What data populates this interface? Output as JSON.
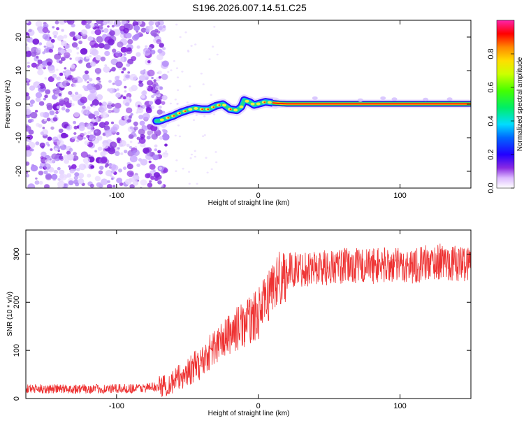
{
  "title": "S196.2026.007.14.51.C25",
  "chart_data": [
    {
      "type": "heatmap",
      "title": "S196.2026.007.14.51.C25",
      "xlabel": "Height of straight line (km)",
      "ylabel": "Frequency (Hz)",
      "xlim": [
        -164,
        150
      ],
      "ylim": [
        -25,
        25
      ],
      "x_ticks": [
        -100,
        0,
        100
      ],
      "y_ticks": [
        -20,
        -10,
        0,
        10,
        20
      ],
      "noise_region_x": [
        -164,
        -68
      ],
      "signal_track": {
        "x": [
          -80,
          -70,
          -65,
          -60,
          -55,
          -50,
          -45,
          -40,
          -35,
          -30,
          -25,
          -20,
          -15,
          -12,
          -10,
          -6,
          -3,
          0,
          5,
          10,
          15,
          20,
          40,
          60,
          80,
          100,
          120,
          150
        ],
        "frequency": [
          -5,
          -5,
          -4.2,
          -3.5,
          -2.5,
          -1.8,
          -1.2,
          -1.5,
          -1.5,
          -0.5,
          0,
          -1.5,
          -1.8,
          -0.8,
          1.2,
          0.6,
          -0.2,
          0.1,
          0.7,
          0.4,
          0.2,
          0.1,
          0.1,
          0.1,
          0.1,
          0.1,
          0.1,
          0.1
        ]
      },
      "colorbar": {
        "label": "Normalized spectral amplitude",
        "range": [
          0.0,
          1.0
        ],
        "ticks": [
          0.0,
          0.2,
          0.4,
          0.6,
          0.8
        ]
      }
    },
    {
      "type": "line",
      "xlabel": "Height of straight line (km)",
      "ylabel": "SNR (10 * v/v)",
      "xlim": [
        -164,
        150
      ],
      "ylim": [
        0,
        350
      ],
      "x_ticks": [
        -100,
        0,
        100
      ],
      "y_ticks": [
        0,
        100,
        200,
        300
      ],
      "color": "#ee3333",
      "x": [
        -164,
        -140,
        -120,
        -100,
        -80,
        -70,
        -65,
        -60,
        -55,
        -50,
        -45,
        -40,
        -35,
        -30,
        -25,
        -20,
        -15,
        -10,
        -5,
        0,
        5,
        10,
        15,
        20,
        25,
        30,
        40,
        50,
        60,
        70,
        80,
        90,
        100,
        110,
        120,
        130,
        140,
        150
      ],
      "values": [
        20,
        20,
        20,
        20,
        22,
        25,
        28,
        35,
        45,
        55,
        65,
        75,
        95,
        110,
        120,
        135,
        145,
        155,
        165,
        175,
        200,
        235,
        250,
        262,
        268,
        270,
        272,
        272,
        275,
        275,
        276,
        278,
        275,
        276,
        282,
        285,
        280,
        282
      ]
    }
  ]
}
